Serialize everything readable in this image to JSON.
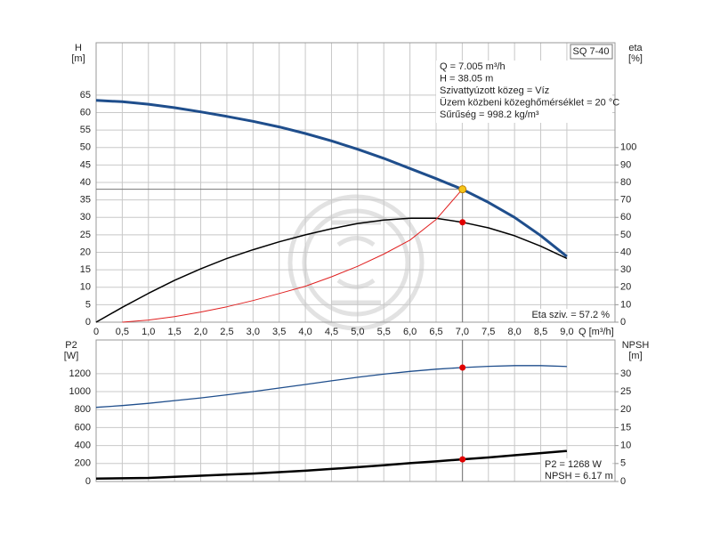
{
  "chart_data": [
    {
      "type": "line",
      "title": "SQ 7-40",
      "x_label": "Q [m³/h]",
      "y_label": "H",
      "y_unit": "[m]",
      "y2_label": "eta",
      "y2_unit": "[%]",
      "x": [
        0,
        0.5,
        1,
        1.5,
        2,
        2.5,
        3,
        3.5,
        4,
        4.5,
        5,
        5.5,
        6,
        6.5,
        7,
        7.5,
        8,
        8.5,
        9
      ],
      "series": [
        {
          "color": "#1f4e8c",
          "width": 3,
          "values": [
            63.5,
            63.1,
            62.4,
            61.4,
            60.2,
            58.9,
            57.5,
            55.9,
            54.0,
            51.9,
            49.5,
            46.9,
            44.0,
            41.1,
            38.05,
            34.3,
            30.0,
            24.8,
            18.8
          ]
        },
        {
          "color": "#000000",
          "width": 1.5,
          "axis": "y2",
          "values": [
            0,
            8.5,
            16.5,
            24,
            30.5,
            36.5,
            41.5,
            46,
            50,
            53.5,
            56.5,
            58.5,
            59.5,
            59.5,
            57.2,
            54,
            49.5,
            43.5,
            36.5
          ]
        },
        {
          "color": "#e02020",
          "width": 1,
          "values": [
            null,
            0,
            0.6,
            1.6,
            2.9,
            4.4,
            6.2,
            8.2,
            10.3,
            13,
            16,
            19.5,
            23.5,
            29.4,
            38.05,
            null,
            null,
            null,
            null
          ]
        }
      ],
      "xlim": [
        0,
        9.92
      ],
      "xticks": [
        0,
        {
          "value": 0.5,
          "label": "0,5"
        },
        {
          "value": 1,
          "label": "1,0"
        },
        {
          "value": 1.5,
          "label": "1,5"
        },
        {
          "value": 2,
          "label": "2,0"
        },
        {
          "value": 2.5,
          "label": "2,5"
        },
        {
          "value": 3,
          "label": "3,0"
        },
        {
          "value": 3.5,
          "label": "3,5"
        },
        {
          "value": 4,
          "label": "4,0"
        },
        {
          "value": 4.5,
          "label": "4,5"
        },
        {
          "value": 5,
          "label": "5,0"
        },
        {
          "value": 5.5,
          "label": "5,5"
        },
        {
          "value": 6,
          "label": "6,0"
        },
        {
          "value": 6.5,
          "label": "6,5"
        },
        {
          "value": 7,
          "label": "7,0"
        },
        {
          "value": 7.5,
          "label": "7,5"
        },
        {
          "value": 8,
          "label": "8,0"
        },
        {
          "value": 8.5,
          "label": "8,5"
        },
        {
          "value": 9,
          "label": "9,0"
        }
      ],
      "ylim": [
        0,
        80
      ],
      "yticks": [
        0,
        5,
        10,
        15,
        20,
        25,
        30,
        35,
        40,
        45,
        50,
        55,
        60,
        65
      ],
      "y2lim": [
        0,
        160
      ],
      "y2ticks": [
        0,
        10,
        20,
        30,
        40,
        50,
        60,
        70,
        80,
        90,
        100
      ],
      "grid": true,
      "duty_point": {
        "q": 7.005,
        "h": 38.05,
        "eta": 57.2
      },
      "info": [
        "Q = 7.005 m³/h",
        "H = 38.05 m",
        "Szivattyúzott közeg = Víz",
        "Üzem közbeni közeghőmérséklet = 20 °C",
        "Sűrűség = 998.2 kg/m³"
      ],
      "annotation": "Eta sziv. = 57.2 %"
    },
    {
      "type": "line",
      "y_label": "P2",
      "y_unit": "[W]",
      "y2_label": "NPSH",
      "y2_unit": "[m]",
      "x": [
        0,
        0.5,
        1,
        1.5,
        2,
        2.5,
        3,
        3.5,
        4,
        4.5,
        5,
        5.5,
        6,
        6.5,
        7,
        7.5,
        8,
        8.5,
        9
      ],
      "series": [
        {
          "color": "#1f4e8c",
          "width": 1.3,
          "values": [
            825,
            845,
            870,
            900,
            930,
            965,
            1000,
            1040,
            1080,
            1120,
            1160,
            1195,
            1225,
            1250,
            1268,
            1282,
            1290,
            1290,
            1280
          ]
        },
        {
          "color": "#000000",
          "width": 2.5,
          "axis": "y2",
          "values": [
            0.8,
            0.9,
            1.0,
            1.3,
            1.6,
            1.9,
            2.2,
            2.6,
            3.0,
            3.5,
            4.0,
            4.5,
            5.1,
            5.6,
            6.17,
            6.7,
            7.3,
            7.9,
            8.5
          ]
        }
      ],
      "xlim": [
        0,
        9.92
      ],
      "ylim": [
        0,
        1575
      ],
      "yticks": [
        0,
        200,
        400,
        600,
        800,
        1000,
        1200
      ],
      "y2lim": [
        0,
        39.4
      ],
      "y2ticks": [
        0,
        5,
        10,
        15,
        20,
        25,
        30
      ],
      "grid": true,
      "duty_point": {
        "q": 7.005,
        "p2": 1268,
        "npsh": 6.17
      },
      "annotations": [
        "P2 = 1268 W",
        "NPSH = 6.17 m"
      ]
    }
  ]
}
